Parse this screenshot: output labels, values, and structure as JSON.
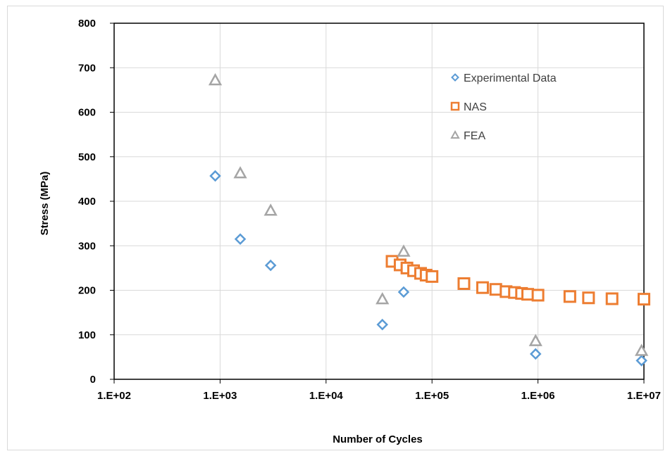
{
  "chart_data": {
    "type": "scatter",
    "title": "",
    "xlabel": "Number of Cycles",
    "ylabel": "Stress (MPa)",
    "xscale": "log",
    "xlim": [
      100,
      10000000
    ],
    "ylim": [
      0,
      800
    ],
    "x_tick_values": [
      100,
      1000,
      10000,
      100000,
      1000000,
      10000000
    ],
    "x_tick_labels": [
      "1.E+02",
      "1.E+03",
      "1.E+04",
      "1.E+05",
      "1.E+06",
      "1.E+07"
    ],
    "y_tick_values": [
      0,
      100,
      200,
      300,
      400,
      500,
      600,
      700,
      800
    ],
    "y_tick_labels": [
      "0",
      "100",
      "200",
      "300",
      "400",
      "500",
      "600",
      "700",
      "800"
    ],
    "grid": true,
    "legend_position": "top-right inside plot",
    "series": [
      {
        "name": "Experimental Data",
        "marker": "diamond",
        "color": "#5b9bd5",
        "points": [
          {
            "x": 900,
            "y": 457
          },
          {
            "x": 1550,
            "y": 315
          },
          {
            "x": 3000,
            "y": 256
          },
          {
            "x": 34000,
            "y": 123
          },
          {
            "x": 54000,
            "y": 196
          },
          {
            "x": 950000,
            "y": 57
          },
          {
            "x": 9500000,
            "y": 42
          }
        ]
      },
      {
        "name": "NAS",
        "marker": "square",
        "color": "#ed7d31",
        "points": [
          {
            "x": 42000,
            "y": 265
          },
          {
            "x": 50000,
            "y": 257
          },
          {
            "x": 58000,
            "y": 250
          },
          {
            "x": 67000,
            "y": 244
          },
          {
            "x": 78000,
            "y": 238
          },
          {
            "x": 88000,
            "y": 234
          },
          {
            "x": 100000,
            "y": 231
          },
          {
            "x": 200000,
            "y": 215
          },
          {
            "x": 300000,
            "y": 206
          },
          {
            "x": 400000,
            "y": 202
          },
          {
            "x": 500000,
            "y": 197
          },
          {
            "x": 600000,
            "y": 195
          },
          {
            "x": 700000,
            "y": 193
          },
          {
            "x": 800000,
            "y": 191
          },
          {
            "x": 1000000,
            "y": 189
          },
          {
            "x": 2000000,
            "y": 186
          },
          {
            "x": 3000000,
            "y": 183
          },
          {
            "x": 5000000,
            "y": 181
          },
          {
            "x": 10000000,
            "y": 180
          }
        ]
      },
      {
        "name": "FEA",
        "marker": "triangle",
        "color": "#a5a5a5",
        "points": [
          {
            "x": 900,
            "y": 672
          },
          {
            "x": 1550,
            "y": 463
          },
          {
            "x": 3000,
            "y": 379
          },
          {
            "x": 34000,
            "y": 180
          },
          {
            "x": 54000,
            "y": 287
          },
          {
            "x": 950000,
            "y": 86
          },
          {
            "x": 9500000,
            "y": 64
          }
        ]
      }
    ]
  }
}
